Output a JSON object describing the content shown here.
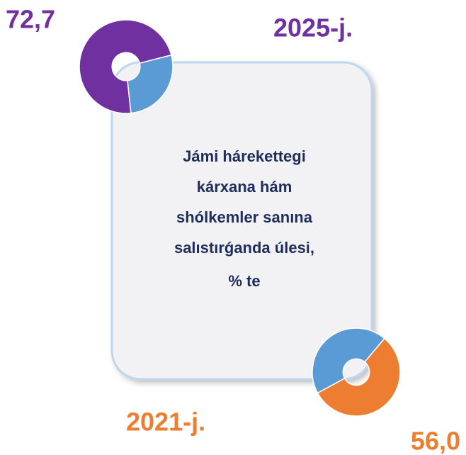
{
  "caption": [
    "Jámi hárekettegi",
    "kárxana hám",
    "shólkemler sanına",
    "salıstırǵanda úlesi,",
    "% te"
  ],
  "chart_data": [
    {
      "type": "pie",
      "donut": true,
      "title": "2025-j.",
      "values": [
        72.7,
        27.3
      ],
      "value_labels": [
        "72,7",
        null
      ],
      "colors": [
        "#7030a0",
        "#5b9bd5"
      ]
    },
    {
      "type": "pie",
      "donut": true,
      "title": "2021-j.",
      "values": [
        56.0,
        44.0
      ],
      "value_labels": [
        "56,0",
        null
      ],
      "colors": [
        "#ed7d31",
        "#5b9bd5"
      ]
    }
  ]
}
